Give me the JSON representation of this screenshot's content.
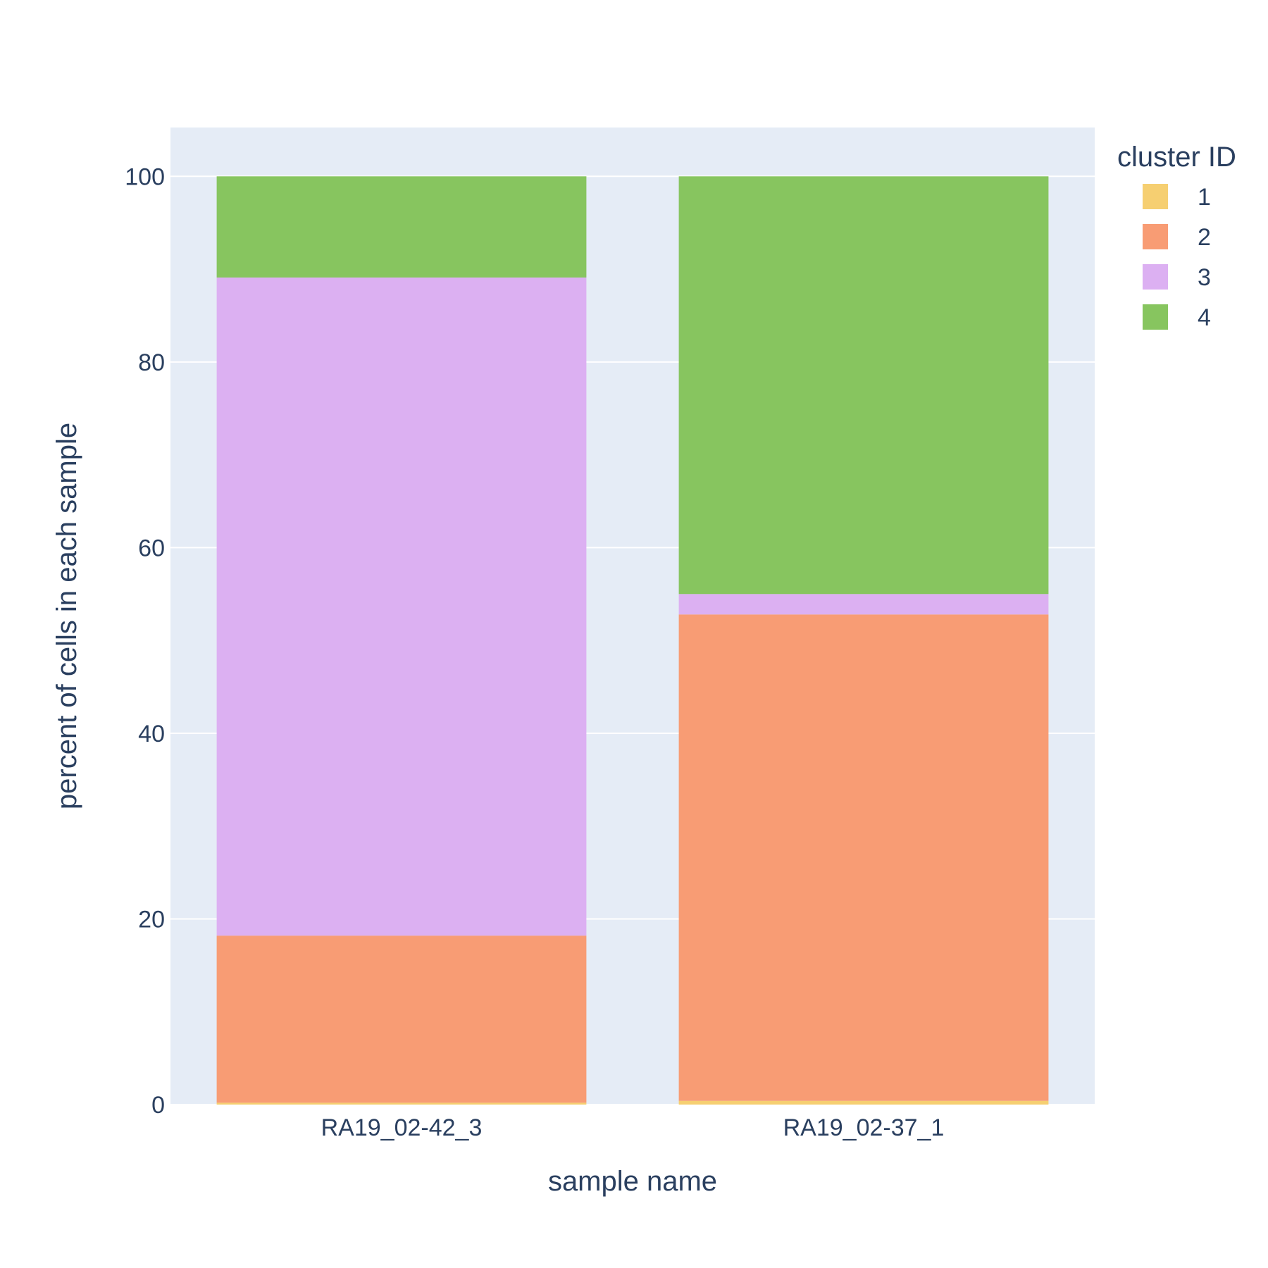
{
  "chart_data": {
    "type": "bar",
    "barmode": "stack",
    "categories": [
      "RA19_02-42_3",
      "RA19_02-37_1"
    ],
    "series": [
      {
        "name": "1",
        "color": "#F6CF71",
        "values": [
          0.2,
          0.4
        ]
      },
      {
        "name": "2",
        "color": "#F89C74",
        "values": [
          18.0,
          52.4
        ]
      },
      {
        "name": "3",
        "color": "#DCB0F2",
        "values": [
          70.9,
          2.2
        ]
      },
      {
        "name": "4",
        "color": "#87C55F",
        "values": [
          10.9,
          45.0
        ]
      }
    ],
    "xlabel": "sample name",
    "ylabel": "percent of cells in each sample",
    "ylim": [
      0,
      105.26
    ],
    "yticks": [
      0,
      20,
      40,
      60,
      80,
      100
    ],
    "legend": {
      "title": "cluster ID",
      "position": "top-right"
    },
    "grid": true,
    "plot_background": "#E5ECF6"
  }
}
